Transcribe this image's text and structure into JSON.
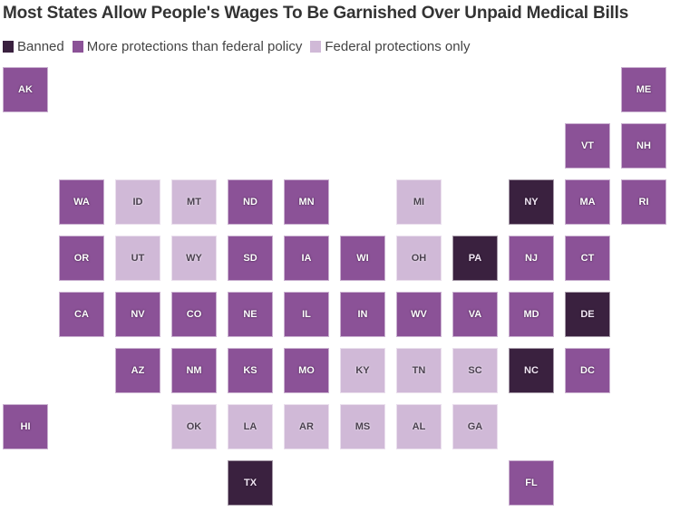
{
  "chart_data": {
    "type": "tile-grid-map",
    "title": "Most States Allow People's Wages To Be Garnished Over Unpaid Medical Bills",
    "legend": [
      {
        "key": "banned",
        "label": "Banned",
        "color": "#3a213f"
      },
      {
        "key": "more",
        "label": "More protections than federal policy",
        "color": "#8b5297"
      },
      {
        "key": "federal",
        "label": "Federal protections only",
        "color": "#d0b9d7"
      }
    ],
    "legend_position": "top-left",
    "tiles": [
      {
        "state": "AK",
        "category": "more",
        "row": 0,
        "col": 0
      },
      {
        "state": "ME",
        "category": "more",
        "row": 0,
        "col": 11
      },
      {
        "state": "VT",
        "category": "more",
        "row": 1,
        "col": 10
      },
      {
        "state": "NH",
        "category": "more",
        "row": 1,
        "col": 11
      },
      {
        "state": "WA",
        "category": "more",
        "row": 2,
        "col": 1
      },
      {
        "state": "ID",
        "category": "federal",
        "row": 2,
        "col": 2
      },
      {
        "state": "MT",
        "category": "federal",
        "row": 2,
        "col": 3
      },
      {
        "state": "ND",
        "category": "more",
        "row": 2,
        "col": 4
      },
      {
        "state": "MN",
        "category": "more",
        "row": 2,
        "col": 5
      },
      {
        "state": "MI",
        "category": "federal",
        "row": 2,
        "col": 7
      },
      {
        "state": "NY",
        "category": "banned",
        "row": 2,
        "col": 9
      },
      {
        "state": "MA",
        "category": "more",
        "row": 2,
        "col": 10
      },
      {
        "state": "RI",
        "category": "more",
        "row": 2,
        "col": 11
      },
      {
        "state": "OR",
        "category": "more",
        "row": 3,
        "col": 1
      },
      {
        "state": "UT",
        "category": "federal",
        "row": 3,
        "col": 2
      },
      {
        "state": "WY",
        "category": "federal",
        "row": 3,
        "col": 3
      },
      {
        "state": "SD",
        "category": "more",
        "row": 3,
        "col": 4
      },
      {
        "state": "IA",
        "category": "more",
        "row": 3,
        "col": 5
      },
      {
        "state": "WI",
        "category": "more",
        "row": 3,
        "col": 6
      },
      {
        "state": "OH",
        "category": "federal",
        "row": 3,
        "col": 7
      },
      {
        "state": "PA",
        "category": "banned",
        "row": 3,
        "col": 8
      },
      {
        "state": "NJ",
        "category": "more",
        "row": 3,
        "col": 9
      },
      {
        "state": "CT",
        "category": "more",
        "row": 3,
        "col": 10
      },
      {
        "state": "CA",
        "category": "more",
        "row": 4,
        "col": 1
      },
      {
        "state": "NV",
        "category": "more",
        "row": 4,
        "col": 2
      },
      {
        "state": "CO",
        "category": "more",
        "row": 4,
        "col": 3
      },
      {
        "state": "NE",
        "category": "more",
        "row": 4,
        "col": 4
      },
      {
        "state": "IL",
        "category": "more",
        "row": 4,
        "col": 5
      },
      {
        "state": "IN",
        "category": "more",
        "row": 4,
        "col": 6
      },
      {
        "state": "WV",
        "category": "more",
        "row": 4,
        "col": 7
      },
      {
        "state": "VA",
        "category": "more",
        "row": 4,
        "col": 8
      },
      {
        "state": "MD",
        "category": "more",
        "row": 4,
        "col": 9
      },
      {
        "state": "DE",
        "category": "banned",
        "row": 4,
        "col": 10
      },
      {
        "state": "AZ",
        "category": "more",
        "row": 5,
        "col": 2
      },
      {
        "state": "NM",
        "category": "more",
        "row": 5,
        "col": 3
      },
      {
        "state": "KS",
        "category": "more",
        "row": 5,
        "col": 4
      },
      {
        "state": "MO",
        "category": "more",
        "row": 5,
        "col": 5
      },
      {
        "state": "KY",
        "category": "federal",
        "row": 5,
        "col": 6
      },
      {
        "state": "TN",
        "category": "federal",
        "row": 5,
        "col": 7
      },
      {
        "state": "SC",
        "category": "federal",
        "row": 5,
        "col": 8
      },
      {
        "state": "NC",
        "category": "banned",
        "row": 5,
        "col": 9
      },
      {
        "state": "DC",
        "category": "more",
        "row": 5,
        "col": 10
      },
      {
        "state": "HI",
        "category": "more",
        "row": 6,
        "col": 0
      },
      {
        "state": "OK",
        "category": "federal",
        "row": 6,
        "col": 3
      },
      {
        "state": "LA",
        "category": "federal",
        "row": 6,
        "col": 4
      },
      {
        "state": "AR",
        "category": "federal",
        "row": 6,
        "col": 5
      },
      {
        "state": "MS",
        "category": "federal",
        "row": 6,
        "col": 6
      },
      {
        "state": "AL",
        "category": "federal",
        "row": 6,
        "col": 7
      },
      {
        "state": "GA",
        "category": "federal",
        "row": 6,
        "col": 8
      },
      {
        "state": "TX",
        "category": "banned",
        "row": 7,
        "col": 4
      },
      {
        "state": "FL",
        "category": "more",
        "row": 7,
        "col": 9
      }
    ]
  }
}
